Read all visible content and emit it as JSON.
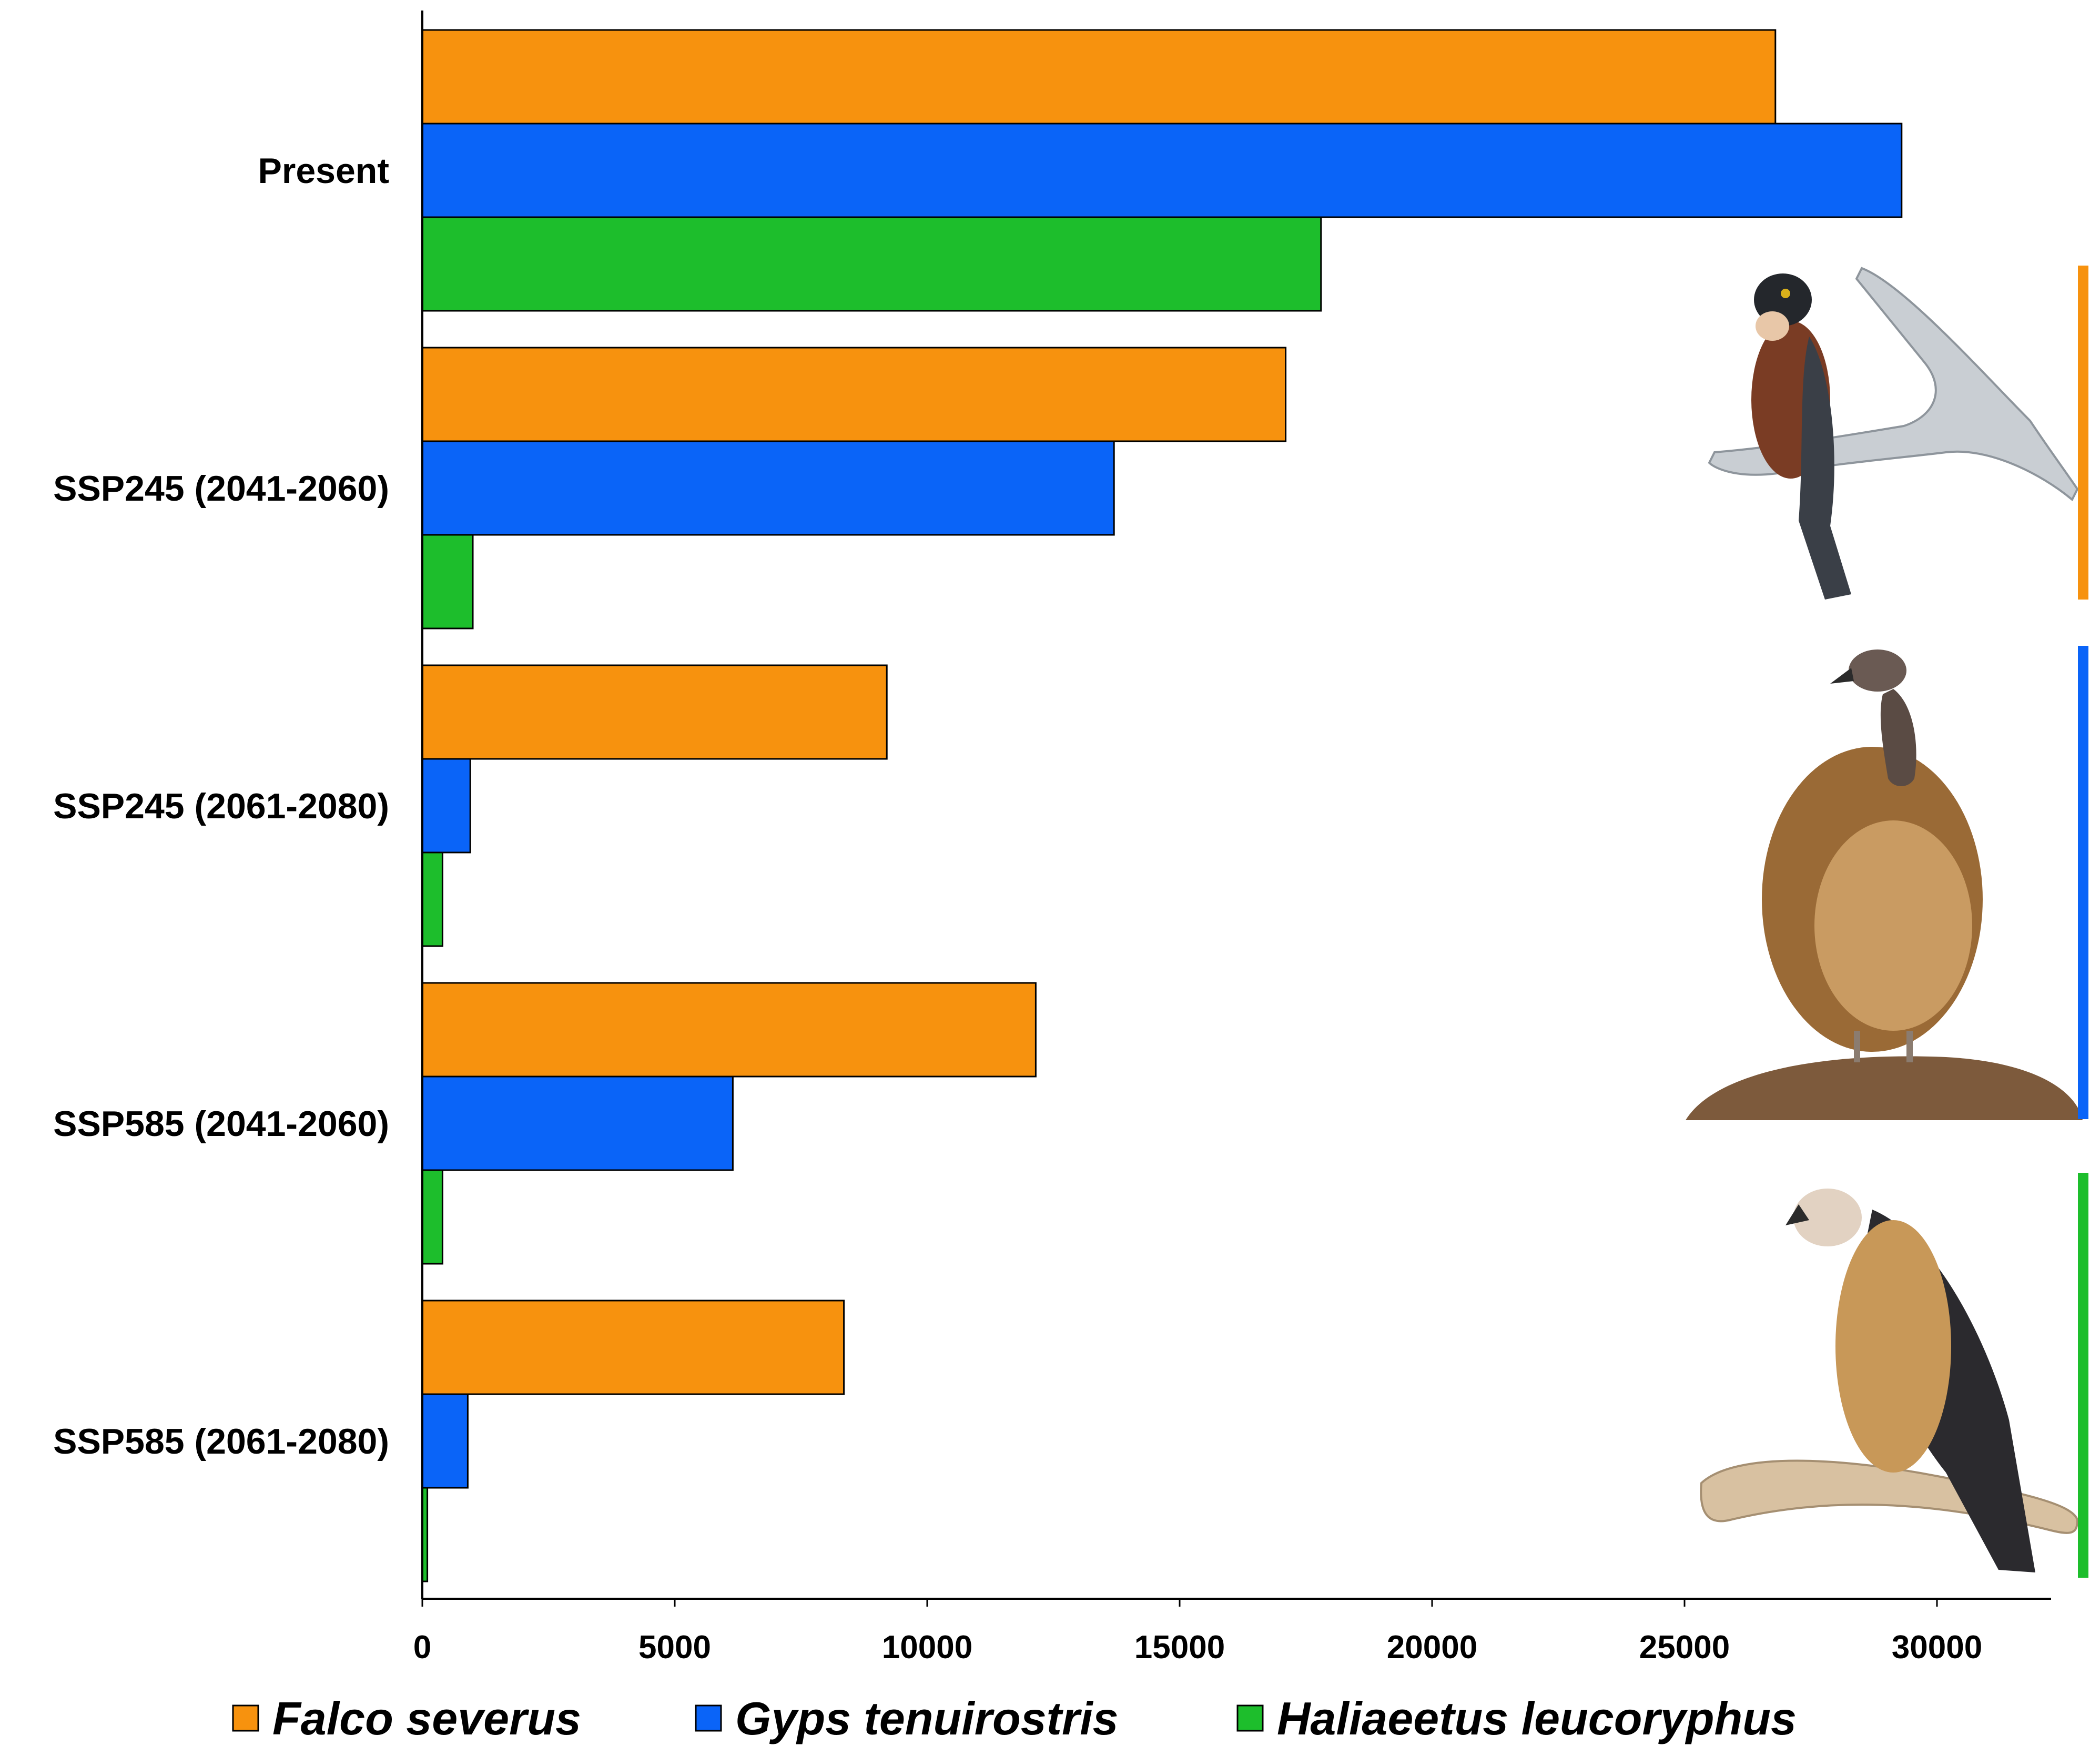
{
  "chart_data": {
    "type": "bar",
    "orientation": "horizontal",
    "title": "",
    "xlabel": "",
    "ylabel": "",
    "categories": [
      "Present",
      "SSP245 (2041-2060)",
      "SSP245 (2061-2080)",
      "SSP585 (2041-2060)",
      "SSP585 (2061-2080)"
    ],
    "series": [
      {
        "name": "Falco severus",
        "color": "#F7920E",
        "values": [
          26800,
          17100,
          9200,
          12150,
          8350
        ]
      },
      {
        "name": "Gyps tenuirostris",
        "color": "#0A64F8",
        "values": [
          29300,
          13700,
          950,
          6150,
          900
        ]
      },
      {
        "name": "Haliaeetus leucoryphus",
        "color": "#1DBE2C",
        "values": [
          17800,
          1000,
          400,
          400,
          100
        ]
      }
    ],
    "xlim": [
      0,
      32000
    ],
    "xticks": [
      "0",
      "5000",
      "10000",
      "15000",
      "20000",
      "25000",
      "30000"
    ],
    "grid": false,
    "legend_position": "bottom"
  },
  "illustrations": [
    {
      "name": "falcon-illustration",
      "depicts": "Falco severus",
      "color": "#F7920E"
    },
    {
      "name": "vulture-illustration",
      "depicts": "Gyps tenuirostris",
      "color": "#0A64F8"
    },
    {
      "name": "eagle-illustration",
      "depicts": "Haliaeetus leucoryphus",
      "color": "#1DBE2C"
    }
  ]
}
